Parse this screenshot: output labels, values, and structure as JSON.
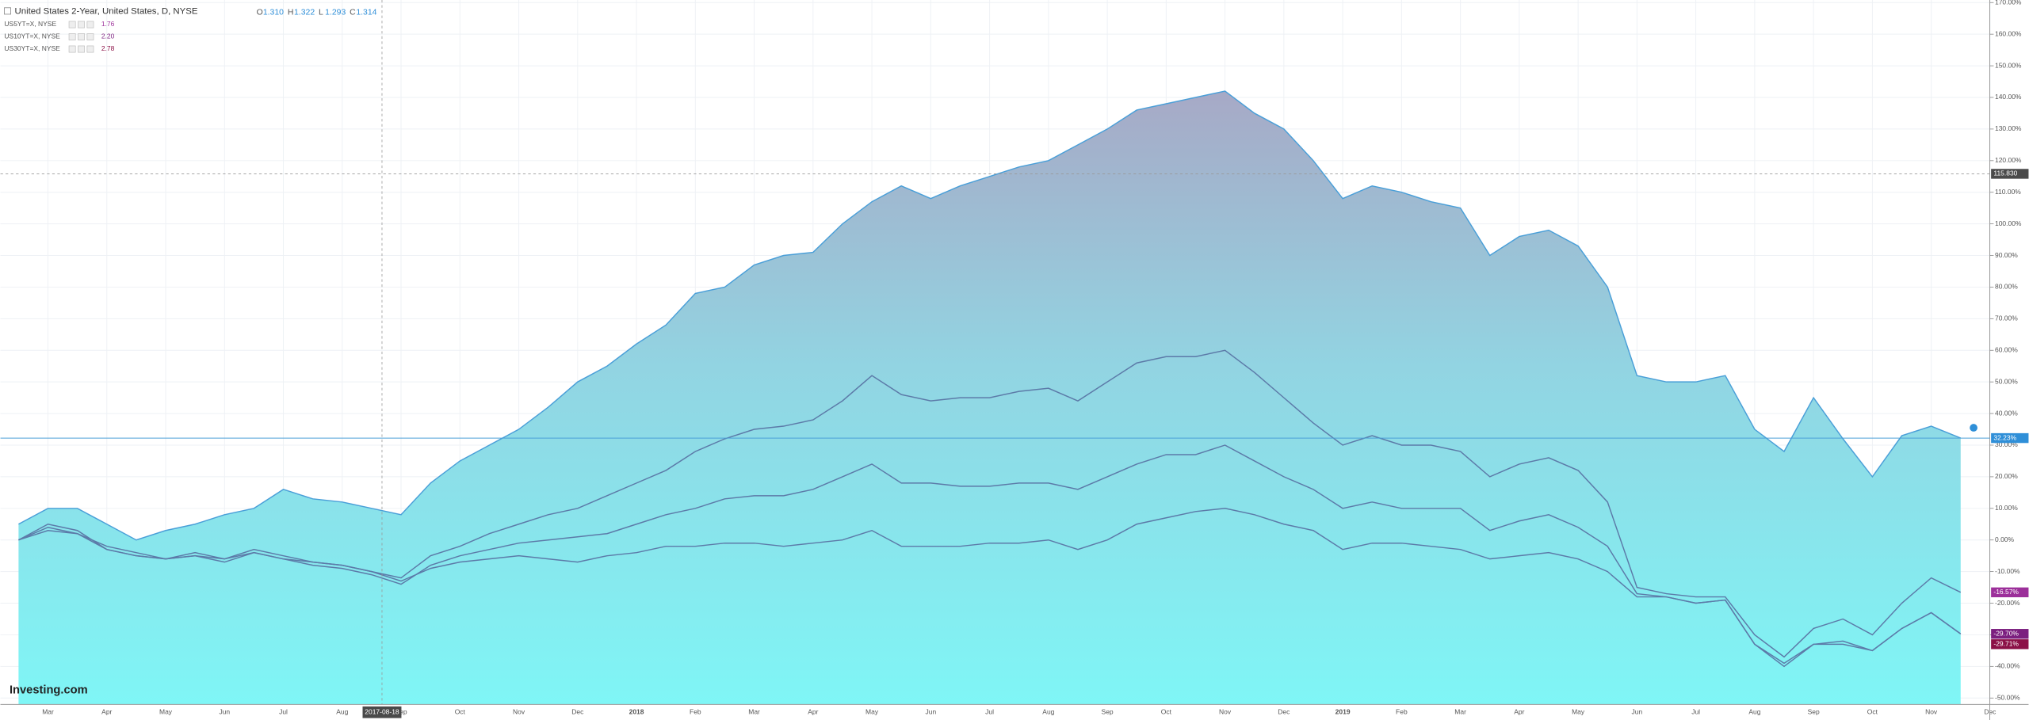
{
  "chart_data": {
    "type": "area_line",
    "watermark": "Investing.com",
    "header": {
      "title": "United States 2-Year, United States, D, NYSE",
      "ohlc": [
        {
          "label": "O",
          "value": "1.310"
        },
        {
          "label": "H",
          "value": "1.322"
        },
        {
          "label": "L",
          "value": "1.293"
        },
        {
          "label": "C",
          "value": "1.314"
        }
      ]
    },
    "crosshair": {
      "x_label": "2017-08-18",
      "y": {
        "value": 115.83,
        "label": "115.830"
      }
    },
    "categories": [
      null,
      "Mar",
      null,
      "Apr",
      null,
      "May",
      null,
      "Jun",
      null,
      "Jul",
      null,
      "Aug",
      null,
      "Sep",
      null,
      "Oct",
      null,
      "Nov",
      null,
      "Dec",
      null,
      "2018",
      null,
      "Feb",
      null,
      "Mar",
      null,
      "Apr",
      null,
      "May",
      null,
      "Jun",
      null,
      "Jul",
      null,
      "Aug",
      null,
      "Sep",
      null,
      "Oct",
      null,
      "Nov",
      null,
      "Dec",
      null,
      "2019",
      null,
      "Feb",
      null,
      "Mar",
      null,
      "Apr",
      null,
      "May",
      null,
      "Jun",
      null,
      "Jul",
      null,
      "Aug",
      null,
      "Sep",
      null,
      "Oct",
      null,
      "Nov",
      null,
      "Dec"
    ],
    "series": [
      {
        "name": "United States 2-Year, United States, D, NYSE",
        "style": "area",
        "color": "#4a9fd8",
        "label_color": "#2f8fd8",
        "last_label": "32.23%",
        "values": [
          5,
          10,
          10,
          5,
          0,
          3,
          5,
          8,
          10,
          16,
          13,
          12,
          10,
          8,
          18,
          25,
          30,
          35,
          42,
          50,
          55,
          62,
          68,
          78,
          80,
          87,
          90,
          91,
          100,
          107,
          112,
          108,
          112,
          115,
          118,
          120,
          125,
          130,
          136,
          138,
          140,
          142,
          135,
          130,
          120,
          108,
          112,
          110,
          107,
          105,
          90,
          96,
          98,
          93,
          80,
          52,
          50,
          50,
          52,
          35,
          28,
          45,
          32,
          20,
          33,
          36,
          32.23,
          null
        ]
      },
      {
        "name": "US5YT=X, NYSE",
        "legend_value": "1.76",
        "style": "line",
        "color": "#5c7aa8",
        "label_color": "#9c2f9a",
        "last_label": "-16.57%",
        "values": [
          0,
          5,
          3,
          -3,
          -5,
          -6,
          -4,
          -6,
          -3,
          -5,
          -7,
          -8,
          -10,
          -12,
          -5,
          -2,
          2,
          5,
          8,
          10,
          14,
          18,
          22,
          28,
          32,
          35,
          36,
          38,
          44,
          52,
          46,
          44,
          45,
          45,
          47,
          48,
          44,
          50,
          56,
          58,
          58,
          60,
          53,
          45,
          37,
          30,
          33,
          30,
          30,
          28,
          20,
          24,
          26,
          22,
          12,
          -15,
          -17,
          -18,
          -18,
          -30,
          -37,
          -28,
          -25,
          -30,
          -20,
          -12,
          -16.57,
          null
        ]
      },
      {
        "name": "US10YT=X, NYSE",
        "legend_value": "2.20",
        "style": "line",
        "color": "#5c7aa8",
        "label_color": "#7b1f7f",
        "last_label": "-29.70%",
        "values": [
          0,
          3,
          2,
          -3,
          -5,
          -6,
          -5,
          -7,
          -4,
          -6,
          -8,
          -9,
          -11,
          -14,
          -8,
          -5,
          -3,
          -1,
          0,
          1,
          2,
          5,
          8,
          10,
          13,
          14,
          14,
          16,
          20,
          24,
          18,
          18,
          17,
          17,
          18,
          18,
          16,
          20,
          24,
          27,
          27,
          30,
          25,
          20,
          16,
          10,
          12,
          10,
          10,
          10,
          3,
          6,
          8,
          4,
          -2,
          -17,
          -18,
          -20,
          -19,
          -33,
          -40,
          -33,
          -32,
          -35,
          -28,
          -23,
          -29.7,
          null
        ]
      },
      {
        "name": "US30YT=X, NYSE",
        "legend_value": "2.78",
        "style": "line",
        "color": "#5c7aa8",
        "label_color": "#8b1046",
        "last_label": "-29.71%",
        "values": [
          0,
          4,
          2,
          -2,
          -4,
          -6,
          -5,
          -6,
          -4,
          -6,
          -7,
          -8,
          -10,
          -13,
          -9,
          -7,
          -6,
          -5,
          -6,
          -7,
          -5,
          -4,
          -2,
          -2,
          -1,
          -1,
          -2,
          -1,
          0,
          3,
          -2,
          -2,
          -2,
          -1,
          -1,
          0,
          -3,
          0,
          5,
          7,
          9,
          10,
          8,
          5,
          3,
          -3,
          -1,
          -1,
          -2,
          -3,
          -6,
          -5,
          -4,
          -6,
          -10,
          -18,
          -18,
          -20,
          -19,
          -33,
          -39,
          -33,
          -33,
          -35,
          -28,
          -23,
          -29.71,
          null
        ]
      }
    ],
    "ylim": [
      -50,
      170
    ],
    "yticks": [
      {
        "value": -50,
        "label": "-50.00%"
      },
      {
        "value": -40,
        "label": "-40.00%"
      },
      {
        "value": -30,
        "label": "-30.00%"
      },
      {
        "value": -20,
        "label": "-20.00%"
      },
      {
        "value": -10,
        "label": "-10.00%"
      },
      {
        "value": 0,
        "label": "0.00%"
      },
      {
        "value": 10,
        "label": "10.00%"
      },
      {
        "value": 20,
        "label": "20.00%"
      },
      {
        "value": 30,
        "label": "30.00%"
      },
      {
        "value": 40,
        "label": "40.00%"
      },
      {
        "value": 50,
        "label": "50.00%"
      },
      {
        "value": 60,
        "label": "60.00%"
      },
      {
        "value": 70,
        "label": "70.00%"
      },
      {
        "value": 80,
        "label": "80.00%"
      },
      {
        "value": 90,
        "label": "90.00%"
      },
      {
        "value": 100,
        "label": "100.00%"
      },
      {
        "value": 110,
        "label": "110.00%"
      },
      {
        "value": 120,
        "label": "120.00%"
      },
      {
        "value": 130,
        "label": "130.00%"
      },
      {
        "value": 140,
        "label": "140.00%"
      },
      {
        "value": 150,
        "label": "150.00%"
      },
      {
        "value": 160,
        "label": "160.00%"
      },
      {
        "value": 170,
        "label": "170.00%"
      }
    ],
    "grid": true
  }
}
